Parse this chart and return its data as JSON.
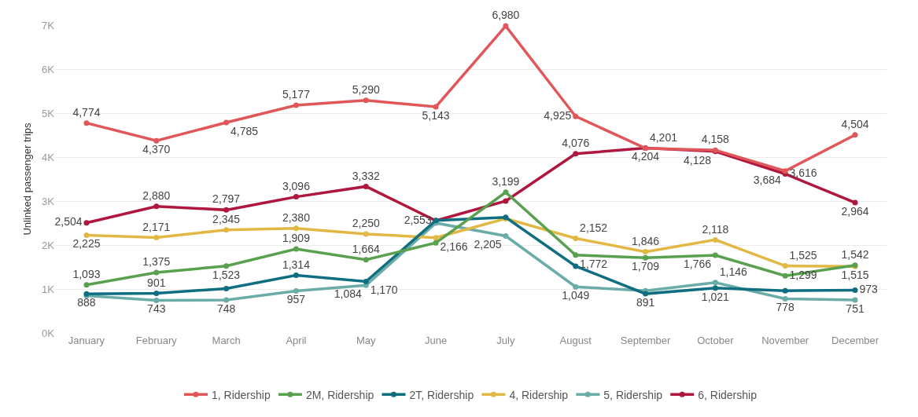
{
  "chart_data": {
    "type": "line",
    "ylabel": "Unlinked passenger trips",
    "categories": [
      "January",
      "February",
      "March",
      "April",
      "May",
      "June",
      "July",
      "August",
      "September",
      "October",
      "November",
      "December"
    ],
    "ylim": [
      0,
      7000
    ],
    "yticks": [
      {
        "value": 0,
        "label": "0K"
      },
      {
        "value": 1000,
        "label": "1K"
      },
      {
        "value": 2000,
        "label": "2K"
      },
      {
        "value": 3000,
        "label": "3K"
      },
      {
        "value": 4000,
        "label": "4K"
      },
      {
        "value": 5000,
        "label": "5K"
      },
      {
        "value": 6000,
        "label": "6K"
      },
      {
        "value": 7000,
        "label": "7K"
      }
    ],
    "grid": "y",
    "legend": "bottom",
    "marker": "circle",
    "line_style": "solid",
    "series": [
      {
        "name": "1, Ridership",
        "color": "#e15759",
        "values": [
          4774,
          4370,
          4785,
          5177,
          5290,
          5143,
          6980,
          4925,
          4201,
          4158,
          3684,
          4504
        ],
        "value_labels": [
          "4,774",
          "4,370",
          "4,785",
          "5,177",
          "5,290",
          "5,143",
          "6,980",
          "4,925",
          "4,201",
          "4,158",
          "3,684",
          "4,504"
        ]
      },
      {
        "name": "2M, Ridership",
        "color": "#59a14f",
        "values": [
          1093,
          1375,
          1523,
          1909,
          1664,
          2050,
          3199,
          1772,
          1709,
          1766,
          1299,
          1542
        ],
        "value_labels": [
          "1,093",
          "1,375",
          "1,523",
          "1,909",
          "1,664",
          null,
          "3,199",
          "1,772",
          "1,709",
          "1,766",
          "1,299",
          "1,542"
        ]
      },
      {
        "name": "2T, Ridership",
        "color": "#0f6e80",
        "values": [
          888,
          901,
          1010,
          1314,
          1170,
          2560,
          2630,
          1520,
          891,
          1021,
          960,
          973
        ],
        "value_labels": [
          "888",
          "901",
          null,
          "1,314",
          "1,170",
          null,
          null,
          null,
          "891",
          "1,021",
          null,
          "973"
        ]
      },
      {
        "name": "4, Ridership",
        "color": "#e2b845",
        "values": [
          2225,
          2171,
          2345,
          2380,
          2250,
          2166,
          2600,
          2152,
          1846,
          2118,
          1525,
          1515
        ],
        "value_labels": [
          "2,225",
          "2,171",
          "2,345",
          "2,380",
          "2,250",
          "2,166",
          null,
          "2,152",
          "1,846",
          "2,118",
          "1,525",
          "1,515"
        ]
      },
      {
        "name": "5, Ridership",
        "color": "#6aaca8",
        "values": [
          850,
          743,
          748,
          957,
          1084,
          2500,
          2205,
          1049,
          960,
          1146,
          778,
          751
        ],
        "value_labels": [
          null,
          "743",
          "748",
          "957",
          "1,084",
          null,
          "2,205",
          "1,049",
          null,
          "1,146",
          "778",
          "751"
        ]
      },
      {
        "name": "6, Ridership",
        "color": "#b0173f",
        "values": [
          2504,
          2880,
          2797,
          3096,
          3332,
          2553,
          3000,
          4076,
          4204,
          4128,
          3616,
          2964
        ],
        "value_labels": [
          "2,504",
          "2,880",
          "2,797",
          "3,096",
          "3,332",
          "2,553",
          null,
          "4,076",
          "4,204",
          "4,128",
          "3,616",
          "2,964"
        ]
      }
    ]
  }
}
